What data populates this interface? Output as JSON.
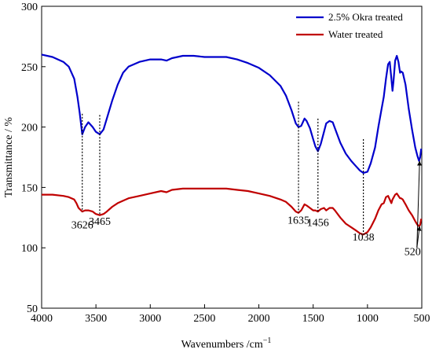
{
  "chart_data": {
    "type": "line",
    "title": "",
    "xlabel": "Wavenumbers /cm",
    "xlabel_superscript": "−1",
    "ylabel": "Transmittance / %",
    "xlim": [
      4000,
      500
    ],
    "x_reversed": true,
    "ylim": [
      50,
      300
    ],
    "xticks": [
      4000,
      3500,
      3000,
      2500,
      2000,
      1500,
      1000,
      500
    ],
    "yticks": [
      50,
      100,
      150,
      200,
      250,
      300
    ],
    "grid": false,
    "legend_position": "top-right",
    "series": [
      {
        "name": "2.5% Okra treated",
        "color": "#0000cc",
        "points": [
          [
            4000,
            260
          ],
          [
            3900,
            258
          ],
          [
            3800,
            254
          ],
          [
            3750,
            250
          ],
          [
            3700,
            240
          ],
          [
            3670,
            225
          ],
          [
            3650,
            212
          ],
          [
            3626,
            194
          ],
          [
            3600,
            200
          ],
          [
            3570,
            204
          ],
          [
            3530,
            200
          ],
          [
            3500,
            196
          ],
          [
            3465,
            194
          ],
          [
            3430,
            198
          ],
          [
            3400,
            207
          ],
          [
            3350,
            222
          ],
          [
            3300,
            235
          ],
          [
            3250,
            245
          ],
          [
            3200,
            250
          ],
          [
            3100,
            254
          ],
          [
            3000,
            256
          ],
          [
            2900,
            256
          ],
          [
            2850,
            255
          ],
          [
            2800,
            257
          ],
          [
            2700,
            259
          ],
          [
            2600,
            259
          ],
          [
            2500,
            258
          ],
          [
            2400,
            258
          ],
          [
            2300,
            258
          ],
          [
            2200,
            256
          ],
          [
            2100,
            253
          ],
          [
            2000,
            249
          ],
          [
            1900,
            243
          ],
          [
            1800,
            234
          ],
          [
            1750,
            226
          ],
          [
            1700,
            214
          ],
          [
            1660,
            203
          ],
          [
            1635,
            200
          ],
          [
            1610,
            201
          ],
          [
            1580,
            207
          ],
          [
            1560,
            205
          ],
          [
            1530,
            199
          ],
          [
            1500,
            190
          ],
          [
            1480,
            184
          ],
          [
            1456,
            180
          ],
          [
            1430,
            186
          ],
          [
            1400,
            196
          ],
          [
            1380,
            203
          ],
          [
            1350,
            205
          ],
          [
            1320,
            204
          ],
          [
            1300,
            199
          ],
          [
            1250,
            187
          ],
          [
            1200,
            178
          ],
          [
            1150,
            172
          ],
          [
            1100,
            167
          ],
          [
            1070,
            164
          ],
          [
            1038,
            162
          ],
          [
            1000,
            163
          ],
          [
            970,
            170
          ],
          [
            930,
            183
          ],
          [
            900,
            200
          ],
          [
            870,
            215
          ],
          [
            850,
            225
          ],
          [
            830,
            240
          ],
          [
            810,
            252
          ],
          [
            795,
            254
          ],
          [
            780,
            240
          ],
          [
            770,
            230
          ],
          [
            760,
            238
          ],
          [
            745,
            255
          ],
          [
            730,
            259
          ],
          [
            715,
            254
          ],
          [
            700,
            245
          ],
          [
            690,
            246
          ],
          [
            675,
            245
          ],
          [
            650,
            235
          ],
          [
            620,
            215
          ],
          [
            590,
            198
          ],
          [
            560,
            183
          ],
          [
            540,
            176
          ],
          [
            525,
            172
          ],
          [
            515,
            175
          ],
          [
            505,
            182
          ]
        ]
      },
      {
        "name": "Water treated",
        "color": "#c00000",
        "points": [
          [
            4000,
            144
          ],
          [
            3900,
            144
          ],
          [
            3800,
            143
          ],
          [
            3750,
            142
          ],
          [
            3700,
            140
          ],
          [
            3680,
            137
          ],
          [
            3660,
            133
          ],
          [
            3626,
            130
          ],
          [
            3600,
            131
          ],
          [
            3570,
            131
          ],
          [
            3530,
            130
          ],
          [
            3500,
            128
          ],
          [
            3465,
            127
          ],
          [
            3430,
            128
          ],
          [
            3400,
            130
          ],
          [
            3350,
            134
          ],
          [
            3300,
            137
          ],
          [
            3200,
            141
          ],
          [
            3100,
            143
          ],
          [
            3000,
            145
          ],
          [
            2900,
            147
          ],
          [
            2850,
            146
          ],
          [
            2800,
            148
          ],
          [
            2700,
            149
          ],
          [
            2600,
            149
          ],
          [
            2500,
            149
          ],
          [
            2400,
            149
          ],
          [
            2300,
            149
          ],
          [
            2200,
            148
          ],
          [
            2100,
            147
          ],
          [
            2000,
            145
          ],
          [
            1900,
            143
          ],
          [
            1800,
            140
          ],
          [
            1750,
            138
          ],
          [
            1700,
            134
          ],
          [
            1660,
            130
          ],
          [
            1635,
            129
          ],
          [
            1610,
            131
          ],
          [
            1580,
            136
          ],
          [
            1560,
            135
          ],
          [
            1530,
            133
          ],
          [
            1500,
            131
          ],
          [
            1480,
            131
          ],
          [
            1456,
            130
          ],
          [
            1430,
            132
          ],
          [
            1400,
            133
          ],
          [
            1380,
            131
          ],
          [
            1350,
            133
          ],
          [
            1320,
            133
          ],
          [
            1300,
            131
          ],
          [
            1250,
            125
          ],
          [
            1200,
            120
          ],
          [
            1150,
            117
          ],
          [
            1100,
            114
          ],
          [
            1070,
            112
          ],
          [
            1038,
            111
          ],
          [
            1000,
            113
          ],
          [
            970,
            117
          ],
          [
            930,
            124
          ],
          [
            900,
            131
          ],
          [
            870,
            136
          ],
          [
            850,
            137
          ],
          [
            830,
            142
          ],
          [
            810,
            143
          ],
          [
            795,
            140
          ],
          [
            780,
            137
          ],
          [
            770,
            140
          ],
          [
            745,
            144
          ],
          [
            730,
            145
          ],
          [
            715,
            143
          ],
          [
            700,
            141
          ],
          [
            690,
            141
          ],
          [
            675,
            140
          ],
          [
            650,
            136
          ],
          [
            620,
            131
          ],
          [
            590,
            127
          ],
          [
            560,
            122
          ],
          [
            540,
            119
          ],
          [
            525,
            118
          ],
          [
            515,
            119
          ],
          [
            505,
            124
          ]
        ]
      }
    ],
    "annotations": [
      {
        "label": "3626",
        "x": 3626,
        "line_top": 211,
        "line_bottom": 130,
        "label_y": 116
      },
      {
        "label": "3465",
        "x": 3465,
        "line_top": 210,
        "line_bottom": 127,
        "label_y": 119
      },
      {
        "label": "1635",
        "x": 1635,
        "line_top": 221,
        "line_bottom": 129,
        "label_y": 120
      },
      {
        "label": "1456",
        "x": 1456,
        "line_top": 207,
        "line_bottom": 130,
        "label_y": 118
      },
      {
        "label": "1038",
        "x": 1038,
        "line_top": 190,
        "line_bottom": 111,
        "label_y": 106
      }
    ],
    "arrow_annotation": {
      "label": "520",
      "label_x": 585,
      "label_y": 94,
      "from_x": 545,
      "from_y": 100,
      "targets": [
        {
          "x": 520,
          "y": 172
        },
        {
          "x": 520,
          "y": 118
        }
      ]
    }
  }
}
